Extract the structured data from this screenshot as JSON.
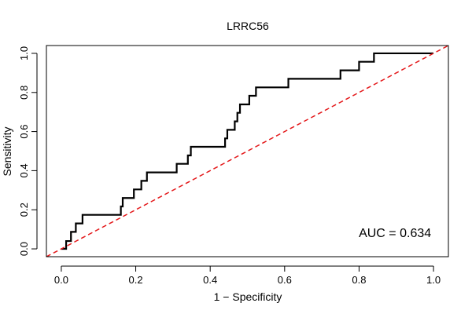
{
  "chart_data": {
    "type": "line",
    "title": "LRRC56",
    "xlabel": "1 − Specificity",
    "ylabel": "Sensitivity",
    "xlim": [
      -0.04,
      1.04
    ],
    "ylim": [
      -0.04,
      1.04
    ],
    "x_ticks": [
      {
        "value": 0.0,
        "label": "0.0"
      },
      {
        "value": 0.2,
        "label": "0.2"
      },
      {
        "value": 0.4,
        "label": "0.4"
      },
      {
        "value": 0.6,
        "label": "0.6"
      },
      {
        "value": 0.8,
        "label": "0.8"
      },
      {
        "value": 1.0,
        "label": "1.0"
      }
    ],
    "y_ticks": [
      {
        "value": 0.0,
        "label": "0.0"
      },
      {
        "value": 0.2,
        "label": "0.2"
      },
      {
        "value": 0.4,
        "label": "0.4"
      },
      {
        "value": 0.6,
        "label": "0.6"
      },
      {
        "value": 0.8,
        "label": "0.8"
      },
      {
        "value": 1.0,
        "label": "1.0"
      }
    ],
    "grid": false,
    "series": [
      {
        "color": "#000000",
        "style": "solid",
        "points": [
          [
            0.0,
            0.0
          ],
          [
            0.013,
            0.0
          ],
          [
            0.013,
            0.04
          ],
          [
            0.026,
            0.04
          ],
          [
            0.026,
            0.087
          ],
          [
            0.039,
            0.087
          ],
          [
            0.039,
            0.13
          ],
          [
            0.057,
            0.13
          ],
          [
            0.057,
            0.174
          ],
          [
            0.16,
            0.174
          ],
          [
            0.16,
            0.217
          ],
          [
            0.165,
            0.217
          ],
          [
            0.165,
            0.26
          ],
          [
            0.195,
            0.26
          ],
          [
            0.195,
            0.304
          ],
          [
            0.215,
            0.304
          ],
          [
            0.215,
            0.348
          ],
          [
            0.23,
            0.348
          ],
          [
            0.23,
            0.391
          ],
          [
            0.31,
            0.391
          ],
          [
            0.31,
            0.435
          ],
          [
            0.34,
            0.435
          ],
          [
            0.34,
            0.478
          ],
          [
            0.348,
            0.478
          ],
          [
            0.348,
            0.522
          ],
          [
            0.44,
            0.522
          ],
          [
            0.44,
            0.565
          ],
          [
            0.446,
            0.565
          ],
          [
            0.446,
            0.609
          ],
          [
            0.466,
            0.609
          ],
          [
            0.466,
            0.652
          ],
          [
            0.473,
            0.652
          ],
          [
            0.473,
            0.696
          ],
          [
            0.48,
            0.696
          ],
          [
            0.48,
            0.739
          ],
          [
            0.505,
            0.739
          ],
          [
            0.505,
            0.783
          ],
          [
            0.523,
            0.783
          ],
          [
            0.523,
            0.826
          ],
          [
            0.61,
            0.826
          ],
          [
            0.61,
            0.87
          ],
          [
            0.75,
            0.87
          ],
          [
            0.75,
            0.913
          ],
          [
            0.8,
            0.913
          ],
          [
            0.8,
            0.957
          ],
          [
            0.84,
            0.957
          ],
          [
            0.84,
            1.0
          ],
          [
            1.0,
            1.0
          ]
        ]
      },
      {
        "color": "#e41a1c",
        "style": "dashed",
        "points": [
          [
            -0.04,
            -0.04
          ],
          [
            1.04,
            1.04
          ]
        ]
      }
    ],
    "annotations": [
      {
        "text": "AUC = 0.634",
        "x": 0.96,
        "y": 0.06,
        "anchor": "end"
      }
    ]
  }
}
